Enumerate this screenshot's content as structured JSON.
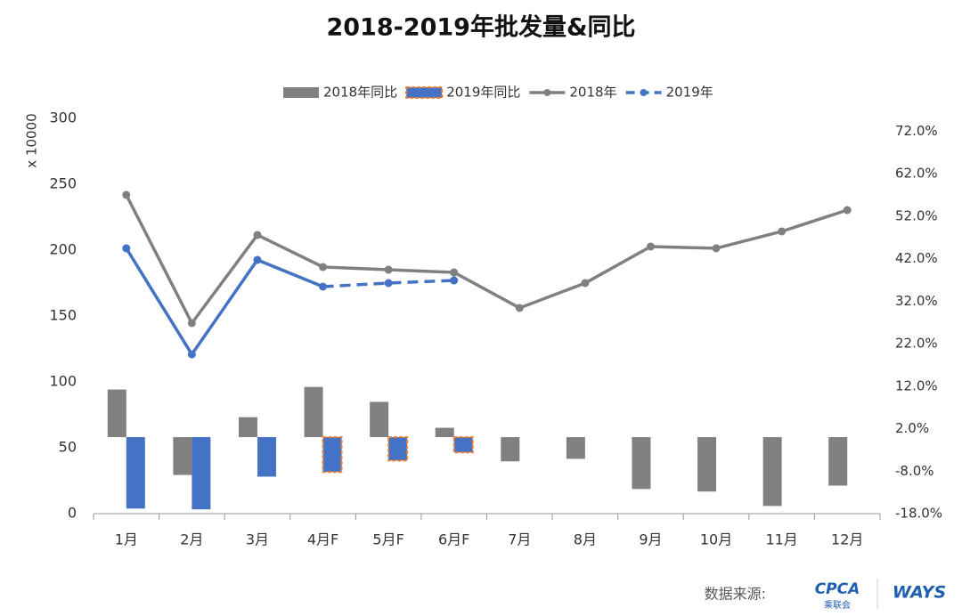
{
  "chart_data": {
    "type": "bar-line",
    "title": "2018-2019年批发量&同比",
    "y_label": "x 10000",
    "source": {
      "label": "数据来源:",
      "logo1": "CPCA",
      "logo1_sub": "乘联会",
      "logo2": "WAYS"
    },
    "categories": [
      "1月",
      "2月",
      "3月",
      "4月F",
      "5月F",
      "6月F",
      "7月",
      "8月",
      "9月",
      "10月",
      "11月",
      "12月"
    ],
    "ylim": [
      0,
      300
    ],
    "yticks": [
      0,
      50,
      100,
      150,
      200,
      250,
      300
    ],
    "y2lim": [
      -18,
      75
    ],
    "y2ticks": [
      {
        "value": -18,
        "label": "-18.0%"
      },
      {
        "value": -8,
        "label": "-8.0%"
      },
      {
        "value": 2,
        "label": "2.0%"
      },
      {
        "value": 12,
        "label": "12.0%"
      },
      {
        "value": 22,
        "label": "22.0%"
      },
      {
        "value": 32,
        "label": "32.0%"
      },
      {
        "value": 42,
        "label": "42.0%"
      },
      {
        "value": 52,
        "label": "52.0%"
      },
      {
        "value": 62,
        "label": "62.0%"
      },
      {
        "value": 72,
        "label": "72.0%"
      }
    ],
    "legend": "top",
    "series": [
      {
        "name": "2018年同比",
        "type": "bar",
        "axis": "y2",
        "color": "#808080",
        "values": [
          11.2,
          -8.9,
          4.7,
          11.8,
          8.3,
          2.2,
          -5.7,
          -5.1,
          -12.2,
          -12.8,
          -16.2,
          -11.4
        ]
      },
      {
        "name": "2019年同比",
        "type": "bar",
        "axis": "y2",
        "color": "#4472c4",
        "dash_color": "#ed7d31",
        "dash_from": 3,
        "values": [
          -16.8,
          -17.0,
          -9.3,
          -8.2,
          -5.5,
          -3.6,
          null,
          null,
          null,
          null,
          null,
          null
        ]
      },
      {
        "name": "2018年",
        "type": "line",
        "color": "#808080",
        "values": [
          241.9,
          144.6,
          211.5,
          187.2,
          185.1,
          183.1,
          156.1,
          175.0,
          202.7,
          201.4,
          214.2,
          230.4
        ]
      },
      {
        "name": "2019年",
        "type": "line",
        "color": "#4472c4",
        "dash_from": 3,
        "values": [
          201.4,
          120.9,
          192.6,
          172.3,
          175.0,
          177.0,
          null,
          null,
          null,
          null,
          null,
          null
        ]
      }
    ]
  }
}
